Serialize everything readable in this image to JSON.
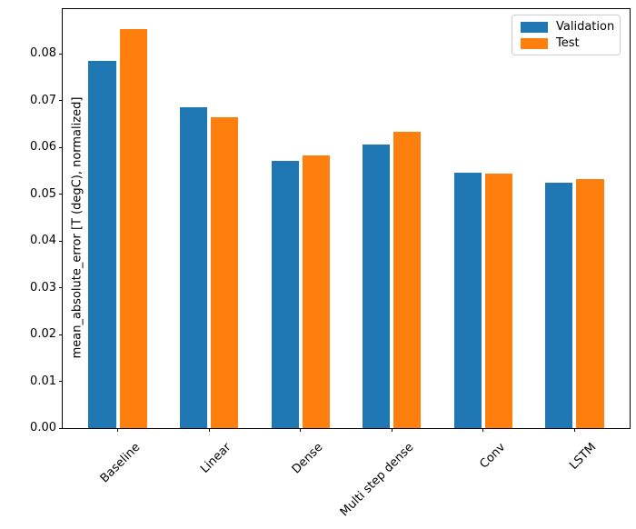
{
  "chart_data": {
    "type": "bar",
    "title": "",
    "xlabel": "",
    "ylabel": "mean_absolute_error [T (degC), normalized]",
    "categories": [
      "Baseline",
      "Linear",
      "Dense",
      "Multi step dense",
      "Conv",
      "LSTM"
    ],
    "series": [
      {
        "name": "Validation",
        "color": "#1f77b4",
        "values": [
          0.0786,
          0.0687,
          0.0572,
          0.0607,
          0.0546,
          0.0524
        ]
      },
      {
        "name": "Test",
        "color": "#ff7f0e",
        "values": [
          0.0853,
          0.0664,
          0.0583,
          0.0634,
          0.0544,
          0.0533
        ]
      }
    ],
    "yticks": [
      "0.00",
      "0.01",
      "0.02",
      "0.03",
      "0.04",
      "0.05",
      "0.06",
      "0.07",
      "0.08"
    ],
    "ylim": [
      0,
      0.0896
    ],
    "xlim": [
      -0.602,
      5.602
    ],
    "bar_width": 0.3,
    "bar_offset": 0.17,
    "xtick_rotation": 45,
    "grid": false,
    "legend_position": "upper right",
    "legend": {
      "items": [
        {
          "label": "Validation",
          "color": "#1f77b4"
        },
        {
          "label": "Test",
          "color": "#ff7f0e"
        }
      ]
    }
  }
}
